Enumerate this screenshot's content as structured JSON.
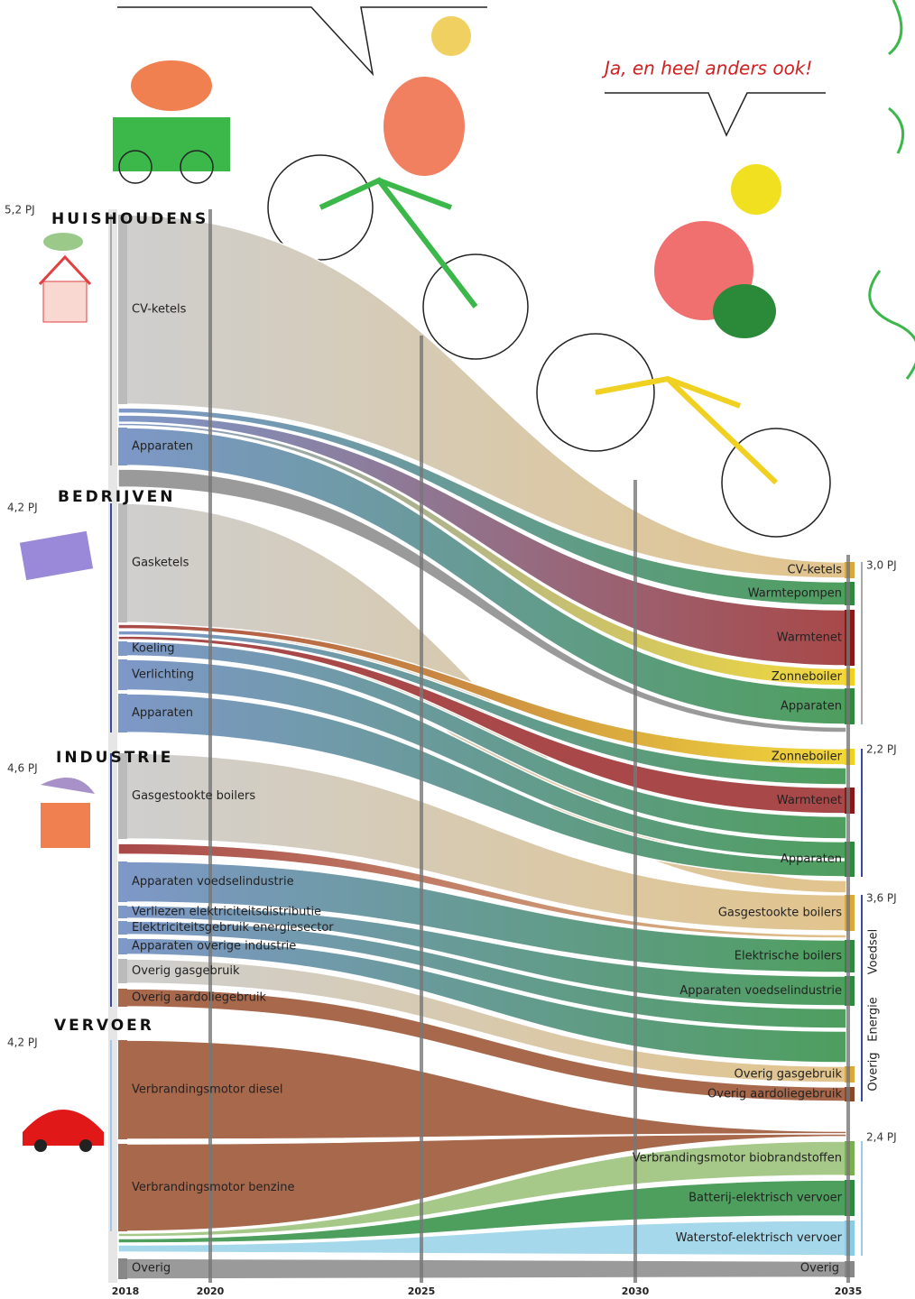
{
  "speech": "Ja, en heel anders ook!",
  "years": [
    "2018",
    "2020",
    "2025",
    "2030",
    "2035"
  ],
  "sectors": [
    {
      "name": "HUISHOUDENS",
      "total_2018": "5,2 PJ",
      "total_2035": "3,0 PJ",
      "left": [
        "CV-ketels",
        "Apparaten"
      ],
      "right": [
        "CV-ketels",
        "Warmtepompen",
        "Warmtenet",
        "Zonneboiler",
        "Apparaten"
      ]
    },
    {
      "name": "BEDRIJVEN",
      "total_2018": "4,2 PJ",
      "total_2035": "2,2 PJ",
      "left": [
        "Gasketels",
        "Koeling",
        "Verlichting",
        "Apparaten"
      ],
      "right": [
        "Zonneboiler",
        "Warmtenet",
        "Apparaten"
      ]
    },
    {
      "name": "INDUSTRIE",
      "total_2018": "4,6 PJ",
      "total_2035": "3,6 PJ",
      "left": [
        "Gasgestookte boilers",
        "Apparaten voedselindustrie",
        "Verliezen elektriciteitsdistributie",
        "Elektriciteitsgebruik energiesector",
        "Apparaten overige industrie",
        "Overig gasgebruik",
        "Overig aardoliegebruik"
      ],
      "right": [
        "Gasgestookte boilers",
        "Elektrische boilers",
        "Apparaten voedselindustrie",
        "Overig gasgebruik",
        "Overig aardoliegebruik"
      ],
      "groups": [
        "Voedsel",
        "Energie",
        "Overig"
      ]
    },
    {
      "name": "VERVOER",
      "total_2018": "4,2 PJ",
      "total_2035": "2,4 PJ",
      "left": [
        "Verbrandingsmotor diesel",
        "Verbrandingsmotor benzine"
      ],
      "right": [
        "Verbrandingsmotor biobrandstoffen",
        "Batterij-elektrisch vervoer",
        "Waterstof-elektrisch vervoer"
      ]
    }
  ],
  "other": {
    "left": "Overig",
    "right": "Overig"
  }
}
